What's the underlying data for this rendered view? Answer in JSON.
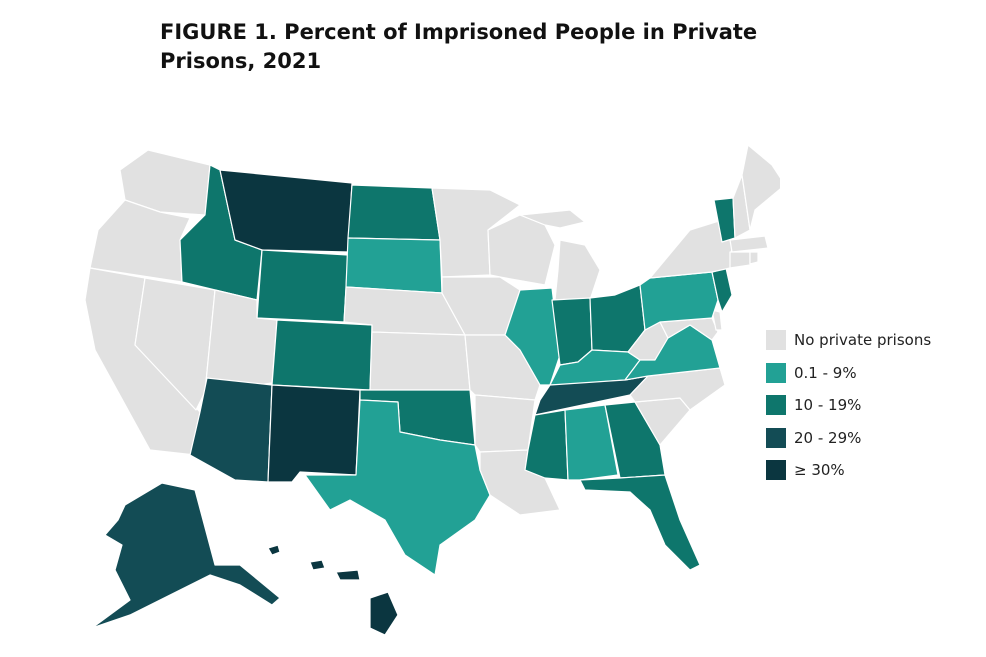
{
  "title": "FIGURE 1. Percent of Imprisoned People in Private Prisons, 2021",
  "legend": [
    {
      "key": "none",
      "label": "No private prisons",
      "color": "#e1e1e1"
    },
    {
      "key": "c1",
      "label": "0.1 - 9%",
      "color": "#22a195"
    },
    {
      "key": "c2",
      "label": "10 - 19%",
      "color": "#0e766c"
    },
    {
      "key": "c3",
      "label": "20 - 29%",
      "color": "#134c55"
    },
    {
      "key": "c4",
      "label": "≥ 30%",
      "color": "#0b3640"
    }
  ],
  "states": {
    "WA": "none",
    "OR": "none",
    "CA": "none",
    "NV": "none",
    "UT": "none",
    "ID": "c2",
    "MT": "c4",
    "WY": "c2",
    "CO": "c2",
    "AZ": "c3",
    "NM": "c4",
    "ND": "c2",
    "SD": "c1",
    "NE": "none",
    "KS": "none",
    "OK": "c2",
    "TX": "c1",
    "MN": "none",
    "IA": "none",
    "MO": "none",
    "AR": "none",
    "LA": "none",
    "WI": "none",
    "IL": "c1",
    "MI": "none",
    "IN": "c2",
    "OH": "c2",
    "KY": "c1",
    "TN": "c3",
    "MS": "c2",
    "AL": "c1",
    "GA": "c2",
    "FL": "c2",
    "SC": "none",
    "NC": "none",
    "VA": "c1",
    "WV": "none",
    "MD": "none",
    "DE": "none",
    "PA": "c1",
    "NJ": "c2",
    "NY": "none",
    "CT": "none",
    "RI": "none",
    "MA": "none",
    "VT": "c2",
    "NH": "none",
    "ME": "none",
    "AK": "c3",
    "HI": "c4"
  }
}
